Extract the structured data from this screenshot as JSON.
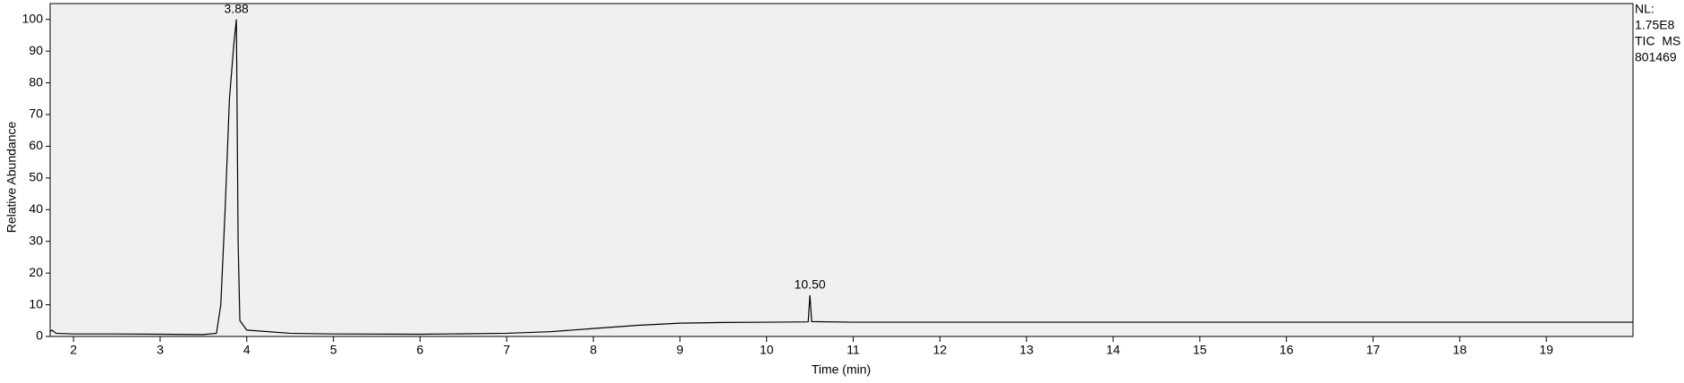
{
  "chart_data": {
    "type": "line",
    "x_label": "Time (min)",
    "y_label": "Relative Abundance",
    "xlim": [
      1.73,
      20.0
    ],
    "ylim": [
      0,
      105
    ],
    "xticks": [
      2,
      3,
      4,
      5,
      6,
      7,
      8,
      9,
      10,
      11,
      12,
      13,
      14,
      15,
      16,
      17,
      18,
      19
    ],
    "yticks": [
      0,
      10,
      20,
      30,
      40,
      50,
      60,
      70,
      80,
      90,
      100
    ],
    "series": [
      {
        "color": "#000000",
        "x": [
          1.73,
          1.75,
          1.8,
          2.0,
          2.5,
          3.0,
          3.5,
          3.65,
          3.7,
          3.75,
          3.8,
          3.85,
          3.88,
          3.9,
          3.92,
          4.0,
          4.5,
          5.0,
          6.0,
          7.0,
          7.5,
          8.0,
          8.5,
          9.0,
          9.5,
          10.0,
          10.48,
          10.5,
          10.52,
          11.0,
          12.0,
          14.0,
          16.0,
          18.0,
          20.0
        ],
        "values": [
          1.5,
          2,
          1,
          0.8,
          0.8,
          0.7,
          0.6,
          1,
          10,
          40,
          75,
          92,
          100,
          30,
          5,
          2,
          1,
          0.8,
          0.7,
          1,
          1.5,
          2.5,
          3.5,
          4.2,
          4.4,
          4.5,
          4.6,
          13,
          4.7,
          4.5,
          4.5,
          4.5,
          4.5,
          4.5,
          4.5
        ]
      }
    ],
    "peaks": [
      {
        "x": 3.88,
        "y": 100,
        "label": "3.88"
      },
      {
        "x": 10.5,
        "y": 13,
        "label": "10.50"
      }
    ],
    "info": [
      "NL:",
      "1.75E8",
      "TIC  MS",
      "801469"
    ]
  }
}
